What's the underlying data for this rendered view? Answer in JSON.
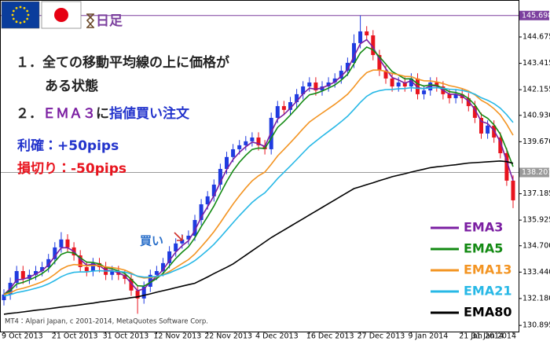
{
  "chart_data": {
    "type": "candlestick",
    "timeframe": "日足",
    "categories": [
      "9 Oct 2013",
      null,
      null,
      null,
      null,
      null,
      null,
      null,
      "21 Oct 2013",
      null,
      null,
      null,
      null,
      null,
      null,
      null,
      "31 Oct 2013",
      null,
      null,
      null,
      null,
      null,
      null,
      null,
      "12 Nov 2013",
      null,
      null,
      null,
      null,
      null,
      null,
      null,
      "22 Nov 2013",
      null,
      null,
      null,
      null,
      null,
      null,
      null,
      "4 Dec 2013",
      null,
      null,
      null,
      null,
      null,
      null,
      null,
      "16 Dec 2013",
      null,
      null,
      null,
      null,
      null,
      null,
      null,
      "27 Dec 2013",
      null,
      null,
      null,
      null,
      null,
      null,
      null,
      "9 Jan 2014",
      null,
      null,
      null,
      null,
      null,
      null,
      null,
      "21 Jan 2014",
      null,
      null,
      null,
      null,
      null,
      null,
      null,
      "31 Jan 2014"
    ],
    "open": [
      132.1,
      132.37,
      132.93,
      133.49,
      133.12,
      133.31,
      133.49,
      133.68,
      134.06,
      134.62,
      135.0,
      134.62,
      134.24,
      133.68,
      133.49,
      133.87,
      133.68,
      133.31,
      133.49,
      133.31,
      133.12,
      132.56,
      132.18,
      132.74,
      133.31,
      133.49,
      133.87,
      134.43,
      134.81,
      135.0,
      135.18,
      135.93,
      136.68,
      137.06,
      137.62,
      138.37,
      138.94,
      139.31,
      139.5,
      139.69,
      139.87,
      139.5,
      139.31,
      140.81,
      141.37,
      141.19,
      141.56,
      141.94,
      142.31,
      142.5,
      142.12,
      142.31,
      142.5,
      142.69,
      143.06,
      143.44,
      144.38,
      144.94,
      144.75,
      143.81,
      143.06,
      142.69,
      142.31,
      142.5,
      142.31,
      142.69,
      141.94,
      142.12,
      142.5,
      142.31,
      141.94,
      141.75,
      141.94,
      141.75,
      141.37,
      140.81,
      140.06,
      140.44,
      139.87,
      139.12,
      137.81
    ],
    "high": [
      132.62,
      133.18,
      133.74,
      133.74,
      133.56,
      133.74,
      133.93,
      134.31,
      134.87,
      135.35,
      135.25,
      134.87,
      134.49,
      133.93,
      134.12,
      134.12,
      133.93,
      133.74,
      133.74,
      133.56,
      133.37,
      132.81,
      132.99,
      133.56,
      133.74,
      134.12,
      134.68,
      135.06,
      135.25,
      135.43,
      136.18,
      136.93,
      137.31,
      137.87,
      138.62,
      139.19,
      139.56,
      139.75,
      139.94,
      140.12,
      140.12,
      139.75,
      141.06,
      141.62,
      141.62,
      141.81,
      142.19,
      142.56,
      142.75,
      142.75,
      142.56,
      142.75,
      142.94,
      143.31,
      143.69,
      144.8,
      145.7,
      145.19,
      145.0,
      144.06,
      143.31,
      142.94,
      142.75,
      142.75,
      142.94,
      142.94,
      142.37,
      142.75,
      142.75,
      142.56,
      142.19,
      142.19,
      142.19,
      142.0,
      141.62,
      141.06,
      140.69,
      140.69,
      140.12,
      139.37,
      138.06
    ],
    "low": [
      131.85,
      132.12,
      132.68,
      132.87,
      132.87,
      133.06,
      133.24,
      133.43,
      133.81,
      134.37,
      134.37,
      133.99,
      133.43,
      133.24,
      133.24,
      133.43,
      133.06,
      133.06,
      133.06,
      132.87,
      132.31,
      131.45,
      131.93,
      132.49,
      133.06,
      133.24,
      133.62,
      134.18,
      134.56,
      134.75,
      134.93,
      135.68,
      136.43,
      136.81,
      137.37,
      138.12,
      138.69,
      139.06,
      139.25,
      139.44,
      139.25,
      139.06,
      139.06,
      140.56,
      140.94,
      140.94,
      141.31,
      141.69,
      142.06,
      141.87,
      141.87,
      142.06,
      142.25,
      142.44,
      142.81,
      143.19,
      144.13,
      144.5,
      143.56,
      142.81,
      142.44,
      142.06,
      142.06,
      142.06,
      142.06,
      141.69,
      141.69,
      141.87,
      142.06,
      141.69,
      141.5,
      141.5,
      141.5,
      141.12,
      140.56,
      139.81,
      139.81,
      139.62,
      138.87,
      137.56,
      136.5
    ],
    "close": [
      132.37,
      132.93,
      133.49,
      133.12,
      133.31,
      133.49,
      133.68,
      134.06,
      134.62,
      135.0,
      134.62,
      134.24,
      133.68,
      133.49,
      133.87,
      133.68,
      133.31,
      133.49,
      133.31,
      133.12,
      132.56,
      132.18,
      132.74,
      133.31,
      133.49,
      133.87,
      134.43,
      134.81,
      135.0,
      135.18,
      135.93,
      136.68,
      137.06,
      137.62,
      138.37,
      138.94,
      139.31,
      139.5,
      139.69,
      139.87,
      139.5,
      139.31,
      140.81,
      141.37,
      141.19,
      141.56,
      141.94,
      142.31,
      142.5,
      142.12,
      142.31,
      142.5,
      142.69,
      143.06,
      143.44,
      144.38,
      144.94,
      144.75,
      143.81,
      143.06,
      142.69,
      142.31,
      142.5,
      142.31,
      142.69,
      141.94,
      142.12,
      142.5,
      142.31,
      141.94,
      141.75,
      141.94,
      141.75,
      141.37,
      140.81,
      140.06,
      140.44,
      139.87,
      139.12,
      137.81,
      136.87
    ],
    "up_color": "#1f3be0",
    "down_color": "#e8141e",
    "series": [
      {
        "name": "EMA3",
        "color": "#7b1fa2",
        "values": [
          132.37,
          132.65,
          133.07,
          133.1,
          133.2,
          133.35,
          133.51,
          133.79,
          134.2,
          134.6,
          134.61,
          134.43,
          134.05,
          133.77,
          133.82,
          133.75,
          133.53,
          133.51,
          133.41,
          133.26,
          132.91,
          132.55,
          132.64,
          132.97,
          133.23,
          133.55,
          133.99,
          134.4,
          134.7,
          134.94,
          135.43,
          136.06,
          136.56,
          137.09,
          137.73,
          138.34,
          138.82,
          139.16,
          139.43,
          139.65,
          139.58,
          139.44,
          140.13,
          140.75,
          140.97,
          141.27,
          141.6,
          141.96,
          142.23,
          142.18,
          142.24,
          142.37,
          142.53,
          142.8,
          143.12,
          143.75,
          144.35,
          144.55,
          144.18,
          143.62,
          143.16,
          142.74,
          142.62,
          142.47,
          142.58,
          142.26,
          142.19,
          142.35,
          142.33,
          142.13,
          141.94,
          141.94,
          141.85,
          141.61,
          141.21,
          140.64,
          140.54,
          140.21,
          139.66,
          138.74,
          137.81
        ]
      },
      {
        "name": "EMA5",
        "color": "#138a13",
        "values": [
          132.37,
          132.56,
          132.87,
          132.95,
          133.07,
          133.21,
          133.37,
          133.6,
          133.94,
          134.29,
          134.4,
          134.35,
          134.13,
          133.92,
          133.9,
          133.83,
          133.66,
          133.6,
          133.5,
          133.37,
          133.1,
          132.79,
          132.77,
          132.95,
          133.13,
          133.38,
          133.73,
          134.09,
          134.39,
          134.65,
          135.08,
          135.61,
          136.09,
          136.6,
          137.19,
          137.77,
          138.28,
          138.69,
          139.02,
          139.3,
          139.37,
          139.35,
          139.84,
          140.35,
          140.63,
          140.94,
          141.27,
          141.62,
          141.91,
          141.98,
          142.09,
          142.23,
          142.38,
          142.61,
          142.89,
          143.39,
          143.91,
          144.19,
          144.06,
          143.73,
          143.38,
          143.02,
          142.85,
          142.67,
          142.68,
          142.43,
          142.33,
          142.39,
          142.36,
          142.22,
          142.06,
          142.02,
          141.93,
          141.74,
          141.43,
          140.97,
          140.79,
          140.48,
          140.03,
          139.29,
          138.48
        ]
      },
      {
        "name": "EMA13",
        "color": "#f39422",
        "values": [
          132.37,
          132.45,
          132.6,
          132.67,
          132.76,
          132.86,
          132.98,
          133.13,
          133.34,
          133.58,
          133.73,
          133.8,
          133.78,
          133.74,
          133.76,
          133.75,
          133.69,
          133.66,
          133.61,
          133.54,
          133.4,
          133.23,
          133.16,
          133.18,
          133.22,
          133.31,
          133.47,
          133.66,
          133.85,
          134.04,
          134.31,
          134.65,
          135.0,
          135.37,
          135.8,
          136.25,
          136.69,
          137.09,
          137.46,
          137.8,
          138.04,
          138.22,
          138.59,
          138.99,
          139.3,
          139.62,
          139.95,
          140.29,
          140.61,
          140.83,
          141.04,
          141.25,
          141.46,
          141.69,
          141.94,
          142.29,
          142.67,
          142.97,
          143.09,
          143.09,
          143.03,
          142.93,
          142.87,
          142.79,
          142.78,
          142.66,
          142.58,
          142.57,
          142.53,
          142.45,
          142.35,
          142.29,
          142.21,
          142.09,
          141.91,
          141.65,
          141.48,
          141.25,
          140.95,
          140.5,
          139.98
        ]
      },
      {
        "name": "EMA21",
        "color": "#27b8e6",
        "values": [
          132.3,
          132.36,
          132.46,
          132.52,
          132.59,
          132.67,
          132.76,
          132.88,
          133.04,
          133.22,
          133.35,
          133.43,
          133.45,
          133.45,
          133.49,
          133.51,
          133.49,
          133.49,
          133.47,
          133.44,
          133.36,
          133.25,
          133.2,
          133.21,
          133.24,
          133.3,
          133.4,
          133.53,
          133.66,
          133.8,
          133.99,
          134.23,
          134.49,
          134.77,
          135.1,
          135.45,
          135.8,
          136.14,
          136.46,
          136.77,
          137.02,
          137.23,
          137.56,
          137.91,
          138.21,
          138.51,
          138.82,
          139.14,
          139.45,
          139.69,
          139.93,
          140.16,
          140.39,
          140.63,
          140.89,
          141.21,
          141.55,
          141.84,
          142.02,
          142.11,
          142.16,
          142.17,
          142.2,
          142.21,
          142.25,
          142.22,
          142.21,
          142.24,
          142.25,
          142.22,
          142.18,
          142.16,
          142.12,
          142.05,
          141.94,
          141.77,
          141.65,
          141.49,
          141.27,
          140.96,
          140.59
        ]
      },
      {
        "name": "EMA80",
        "color": "#000000",
        "values": [
          131.43,
          131.47,
          131.5,
          131.54,
          131.58,
          131.62,
          131.65,
          131.69,
          131.73,
          131.77,
          131.8,
          131.84,
          131.88,
          131.92,
          131.96,
          132.01,
          132.05,
          132.09,
          132.13,
          132.17,
          132.22,
          132.26,
          132.33,
          132.4,
          132.48,
          132.55,
          132.62,
          132.7,
          132.77,
          132.84,
          132.91,
          133.06,
          133.21,
          133.37,
          133.52,
          133.67,
          133.83,
          134.04,
          134.25,
          134.46,
          134.67,
          134.88,
          135.09,
          135.27,
          135.45,
          135.63,
          135.81,
          135.99,
          136.17,
          136.35,
          136.53,
          136.71,
          136.89,
          137.07,
          137.25,
          137.43,
          137.52,
          137.62,
          137.71,
          137.81,
          137.9,
          138.0,
          138.07,
          138.14,
          138.22,
          138.29,
          138.36,
          138.43,
          138.47,
          138.5,
          138.54,
          138.57,
          138.61,
          138.65,
          138.67,
          138.69,
          138.71,
          138.73,
          138.75,
          138.72,
          138.64
        ]
      }
    ],
    "ylim": [
      130.6,
      146.44
    ],
    "yticks": [
      144.675,
      {
        "value": 143.415,
        "label": "143.415"
      },
      {
        "value": 142.155,
        "label": "142.155"
      },
      {
        "value": 140.93,
        "label": "140.930"
      },
      {
        "value": 139.67,
        "label": "139.670"
      },
      137.185,
      135.925,
      {
        "value": 134.7,
        "label": "134.700"
      },
      {
        "value": 133.44,
        "label": "133.440"
      },
      {
        "value": 132.18,
        "label": "132.180"
      },
      130.895
    ],
    "price_lines": [
      {
        "value": 145.698,
        "color": "#7b3f9e"
      },
      {
        "value": 138.201,
        "color": "#9a9a9a"
      }
    ],
    "legend": "bottom-right",
    "annotations": {
      "step1": [
        "１．全ての移動平均線の上に価格が",
        "ある状態"
      ],
      "step2": [
        {
          "text": "２．",
          "color": "#222222"
        },
        {
          "text": "ＥＭＡ３",
          "color": "#7b1fa2"
        },
        {
          "text": "に",
          "color": "#222222"
        },
        {
          "text": "指値買い注文",
          "color": "#2233cc"
        }
      ],
      "take_profit": {
        "text": "利確：+50pips",
        "color": "#2233cc"
      },
      "stop_loss": {
        "text": "損切り：-50pips",
        "color": "#e8141e"
      },
      "buy": {
        "text": "買い",
        "color": "#2a6fc9"
      }
    },
    "credit": "MT4：Alpari Japan, c 2001-2014, MetaQuotes Software Corp."
  }
}
